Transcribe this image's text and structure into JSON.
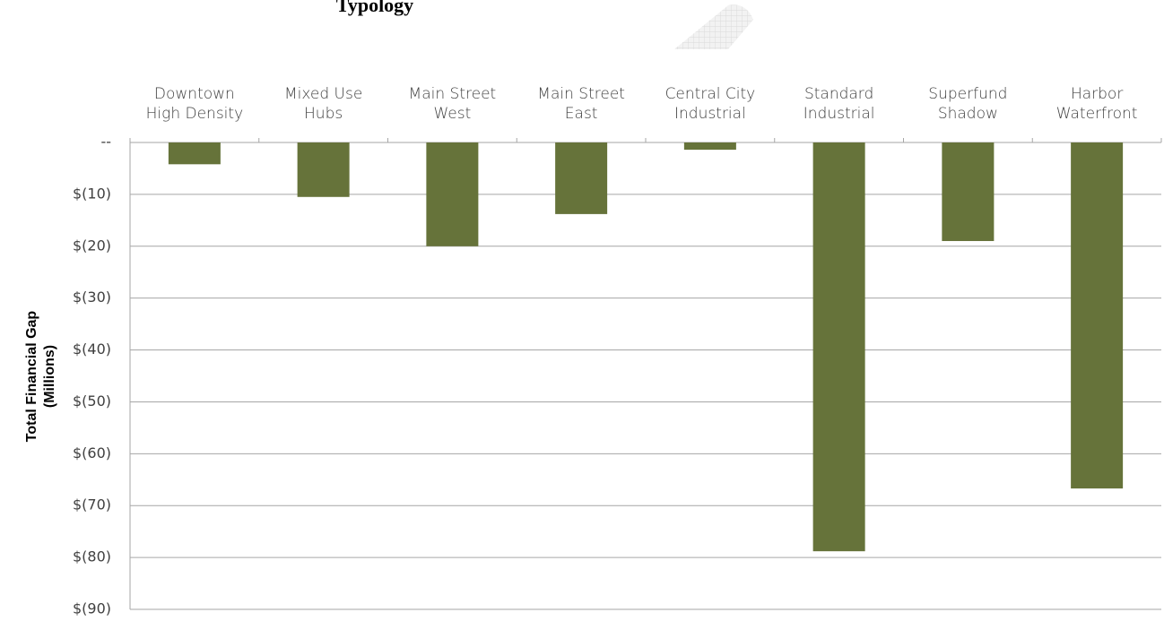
{
  "chart_data": {
    "type": "bar",
    "title": "Typology",
    "ylabel": [
      "Total Financial Gap",
      "(Millions)"
    ],
    "categories": [
      "Downtown\nHigh Density",
      "Mixed Use\nHubs",
      "Main Street\nWest",
      "Main Street\nEast",
      "Central City\nIndustrial",
      "Standard\nIndustrial",
      "Superfund\nShadow",
      "Harbor\nWaterfront"
    ],
    "values": [
      -4.2,
      -10.5,
      -20,
      -13.8,
      -1.4,
      -78.8,
      -19,
      -66.7
    ],
    "color": "#66733a",
    "ylim": [
      -90,
      0
    ],
    "yticks": [
      {
        "value": 0,
        "label": "--"
      },
      {
        "value": -10,
        "label": "$(10)"
      },
      {
        "value": -20,
        "label": "$(20)"
      },
      {
        "value": -30,
        "label": "$(30)"
      },
      {
        "value": -40,
        "label": "$(40)"
      },
      {
        "value": -50,
        "label": "$(50)"
      },
      {
        "value": -60,
        "label": "$(60)"
      },
      {
        "value": -70,
        "label": "$(70)"
      },
      {
        "value": -80,
        "label": "$(80)"
      },
      {
        "value": -90,
        "label": "$(90)"
      }
    ],
    "grid": true
  }
}
